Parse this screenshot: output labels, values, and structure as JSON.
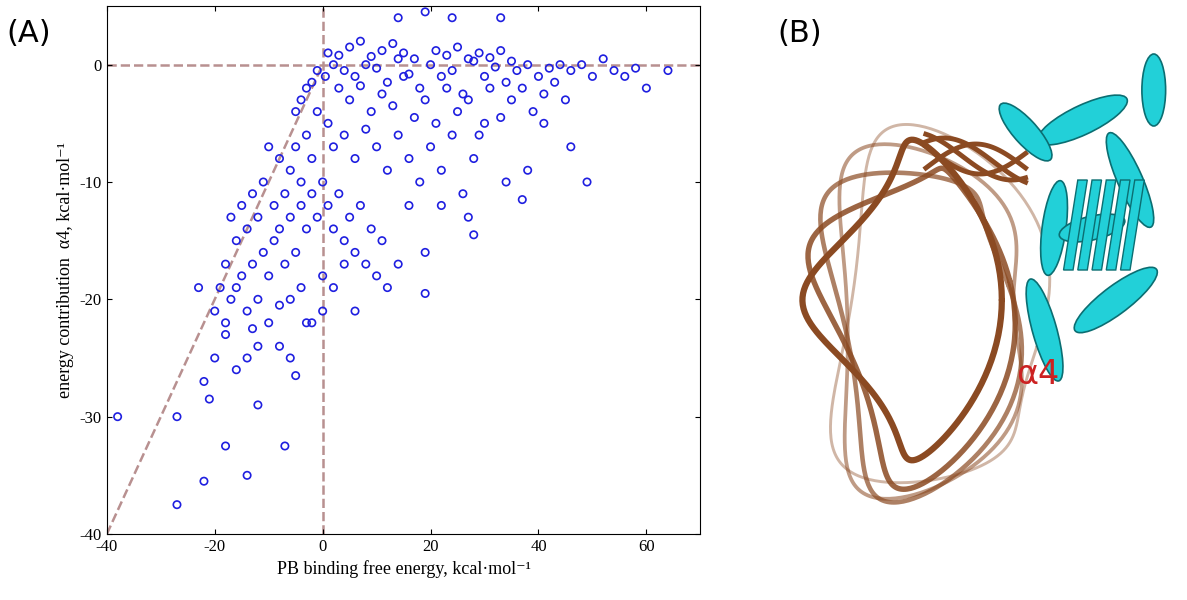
{
  "chart_data": {
    "type": "scatter",
    "panel_label": "(A)",
    "x_label": "PB binding free energy, kcal·mol⁻¹",
    "y_label": "energy contribution  α4, kcal·mol⁻¹",
    "color": "#1f1fe0",
    "marker": "o",
    "xlim": [
      -40,
      70
    ],
    "xticks": [
      -40,
      -20,
      0,
      20,
      40,
      60
    ],
    "ylim": [
      -40,
      5
    ],
    "yticks": [
      -40,
      -30,
      -20,
      -10,
      0
    ],
    "grid": false,
    "reference_lines": [
      {
        "type": "horizontal",
        "value": 0
      },
      {
        "type": "vertical",
        "value": 0
      },
      {
        "type": "segment",
        "x": [
          -40,
          0
        ],
        "y": [
          -40,
          0
        ]
      }
    ],
    "x": [
      2,
      4,
      6,
      8,
      10,
      12,
      14,
      16,
      18,
      20,
      22,
      24,
      26,
      28,
      30,
      32,
      34,
      36,
      38,
      40,
      42,
      44,
      46,
      48,
      50,
      54,
      56,
      58,
      3,
      5,
      7,
      9,
      11,
      13,
      15,
      17,
      19,
      21,
      23,
      25,
      27,
      29,
      31,
      33,
      35,
      37,
      39,
      41,
      43,
      45,
      1,
      2,
      4,
      6,
      8,
      10,
      12,
      14,
      16,
      18,
      20,
      22,
      24,
      26,
      28,
      30,
      1,
      3,
      5,
      7,
      9,
      11,
      13,
      15,
      17,
      21,
      23,
      25,
      27,
      29,
      31,
      33,
      35,
      0.5,
      -1,
      -2,
      -3,
      -4,
      -5,
      -1,
      -3,
      -2,
      -5,
      -6,
      -4,
      -8,
      -7,
      -9,
      -10,
      -11,
      -12,
      -13,
      -14,
      -15,
      -16,
      -17,
      -18,
      -19,
      -20,
      -18,
      -17,
      -16,
      -15,
      -14,
      -13,
      -12,
      -11,
      -10,
      -9,
      -8,
      -7,
      -6,
      -5,
      -4,
      -3,
      -2,
      -1,
      0,
      1,
      2,
      3,
      4,
      5,
      6,
      7,
      8,
      9,
      10,
      11,
      12,
      14,
      -10,
      -8,
      -6,
      -4,
      -2,
      0,
      2,
      4,
      -12,
      -14,
      -16,
      -18,
      -20,
      -22,
      -21,
      -23,
      -6,
      -5,
      -3,
      -8,
      -13,
      -38,
      -27,
      -22,
      -14,
      -18,
      -7,
      -27,
      -12,
      49,
      37,
      28,
      19,
      19,
      60,
      64,
      52,
      33,
      24,
      19,
      14,
      46,
      41,
      38,
      34,
      27,
      22,
      16,
      6,
      0
    ],
    "values": [
      0,
      -0.5,
      -1,
      0,
      -0.3,
      -1.5,
      0.5,
      -0.8,
      -2,
      0,
      -1,
      -0.5,
      -2.5,
      0.3,
      -1,
      -0.2,
      -1.5,
      -0.5,
      0,
      -1,
      -0.3,
      0,
      -0.5,
      0,
      -1,
      -0.5,
      -1,
      -0.3,
      -2,
      -3,
      -1.8,
      -4,
      -2.5,
      -3.5,
      -1,
      -4.5,
      -3,
      -5,
      -2,
      -4,
      -3,
      -6,
      -2,
      -4.5,
      -3,
      -2,
      -4,
      -2.5,
      -1.5,
      -3,
      -5,
      -7,
      -6,
      -8,
      -5.5,
      -7,
      -9,
      -6,
      -8,
      -10,
      -7,
      -9,
      -6,
      -11,
      -8,
      -5,
      1,
      0.8,
      1.5,
      2,
      0.7,
      1.2,
      1.8,
      1,
      0.5,
      1.2,
      0.8,
      1.5,
      0.5,
      1,
      0.6,
      1.2,
      0.3,
      -1,
      -0.5,
      -1.5,
      -2,
      -3,
      -4,
      -4,
      -6,
      -8,
      -7,
      -9,
      -10,
      -8,
      -11,
      -12,
      -7,
      -10,
      -13,
      -11,
      -14,
      -12,
      -15,
      -13,
      -17,
      -19,
      -21,
      -22,
      -20,
      -19,
      -18,
      -21,
      -17,
      -20,
      -16,
      -18,
      -15,
      -14,
      -17,
      -13,
      -16,
      -12,
      -14,
      -11,
      -13,
      -10,
      -12,
      -14,
      -11,
      -15,
      -13,
      -16,
      -12,
      -17,
      -14,
      -18,
      -15,
      -19,
      -17,
      -22,
      -24,
      -20,
      -19,
      -22,
      -21,
      -19,
      -17,
      -24,
      -25,
      -26,
      -23,
      -25,
      -27,
      -28.5,
      -19,
      -25,
      -26.5,
      -22,
      -20.5,
      -22.5,
      -30,
      -37.5,
      -35.5,
      -35,
      -32.5,
      -32.5,
      -30,
      -29,
      -10,
      -11.5,
      -14.5,
      -19.5,
      -16,
      -2,
      -0.5,
      0.5,
      4,
      4,
      4.5,
      4,
      -7,
      -5,
      -9,
      -10,
      -13,
      -12,
      -12,
      -21,
      -18
    ]
  },
  "diagram": {
    "label": "(B)",
    "annotation": "α4"
  }
}
